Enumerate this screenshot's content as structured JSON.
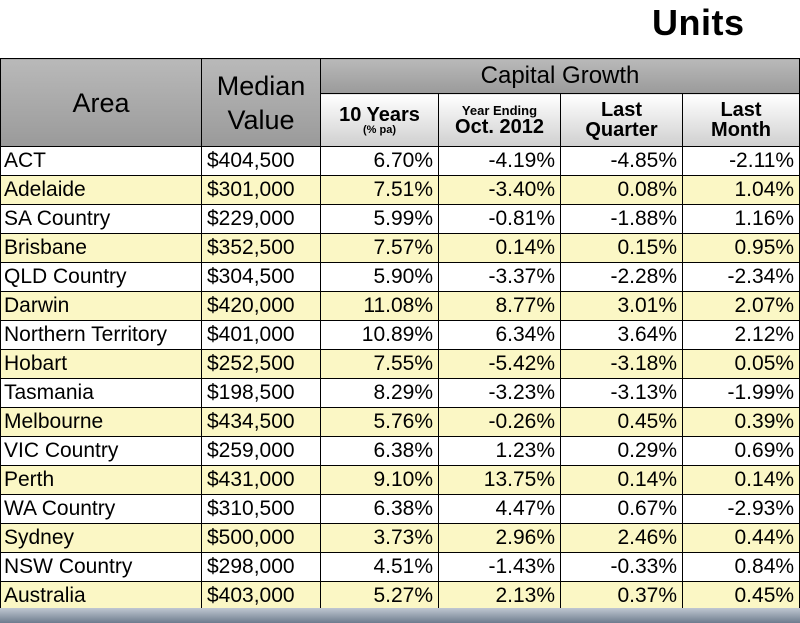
{
  "title": "Units",
  "header": {
    "area": "Area",
    "median_value": "Median Value",
    "capital_growth": "Capital Growth",
    "sub": [
      {
        "line1": "10 Years",
        "line2": "(% pa)"
      },
      {
        "line1": "Year Ending",
        "line2": "Oct. 2012"
      },
      {
        "line1": "Last",
        "line2": "Quarter"
      },
      {
        "line1": "Last",
        "line2": "Month"
      }
    ]
  },
  "rows": [
    {
      "area": "ACT",
      "median": "$404,500",
      "y10": "6.70%",
      "ye": "-4.19%",
      "lq": "-4.85%",
      "lm": "-2.11%"
    },
    {
      "area": "Adelaide",
      "median": "$301,000",
      "y10": "7.51%",
      "ye": "-3.40%",
      "lq": "0.08%",
      "lm": "1.04%"
    },
    {
      "area": "SA Country",
      "median": "$229,000",
      "y10": "5.99%",
      "ye": "-0.81%",
      "lq": "-1.88%",
      "lm": "1.16%"
    },
    {
      "area": "Brisbane",
      "median": "$352,500",
      "y10": "7.57%",
      "ye": "0.14%",
      "lq": "0.15%",
      "lm": "0.95%"
    },
    {
      "area": "QLD Country",
      "median": "$304,500",
      "y10": "5.90%",
      "ye": "-3.37%",
      "lq": "-2.28%",
      "lm": "-2.34%"
    },
    {
      "area": "Darwin",
      "median": "$420,000",
      "y10": "11.08%",
      "ye": "8.77%",
      "lq": "3.01%",
      "lm": "2.07%"
    },
    {
      "area": "Northern Territory",
      "median": "$401,000",
      "y10": "10.89%",
      "ye": "6.34%",
      "lq": "3.64%",
      "lm": "2.12%"
    },
    {
      "area": "Hobart",
      "median": "$252,500",
      "y10": "7.55%",
      "ye": "-5.42%",
      "lq": "-3.18%",
      "lm": "0.05%"
    },
    {
      "area": "Tasmania",
      "median": "$198,500",
      "y10": "8.29%",
      "ye": "-3.23%",
      "lq": "-3.13%",
      "lm": "-1.99%"
    },
    {
      "area": "Melbourne",
      "median": "$434,500",
      "y10": "5.76%",
      "ye": "-0.26%",
      "lq": "0.45%",
      "lm": "0.39%"
    },
    {
      "area": "VIC Country",
      "median": "$259,000",
      "y10": "6.38%",
      "ye": "1.23%",
      "lq": "0.29%",
      "lm": "0.69%"
    },
    {
      "area": "Perth",
      "median": "$431,000",
      "y10": "9.10%",
      "ye": "13.75%",
      "lq": "0.14%",
      "lm": "0.14%"
    },
    {
      "area": "WA Country",
      "median": "$310,500",
      "y10": "6.38%",
      "ye": "4.47%",
      "lq": "0.67%",
      "lm": "-2.93%"
    },
    {
      "area": "Sydney",
      "median": "$500,000",
      "y10": "3.73%",
      "ye": "2.96%",
      "lq": "2.46%",
      "lm": "0.44%"
    },
    {
      "area": "NSW Country",
      "median": "$298,000",
      "y10": "4.51%",
      "ye": "-1.43%",
      "lq": "-0.33%",
      "lm": "0.84%"
    },
    {
      "area": "Australia",
      "median": "$403,000",
      "y10": "5.27%",
      "ye": "2.13%",
      "lq": "0.37%",
      "lm": "0.45%"
    }
  ],
  "colors": {
    "header_bg": "#a9a9a9",
    "row_highlight": "#fbf7c5",
    "row_plain": "#ffffff",
    "bottom_bar": "#8a97a8"
  }
}
